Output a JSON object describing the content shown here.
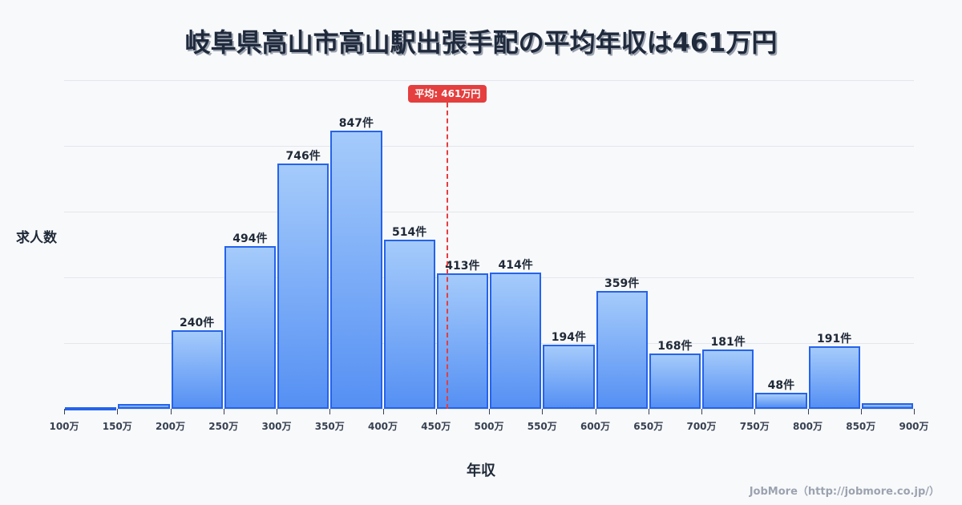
{
  "title": "岐阜県高山市高山駅出張手配の平均年収は461万円",
  "axis": {
    "ylabel": "求人数",
    "xlabel": "年収"
  },
  "mean": {
    "value": 461,
    "label": "平均: 461万円"
  },
  "credit": "JobMore（http://jobmore.co.jp/）",
  "colors": {
    "bar_top": "#a5cbfb",
    "bar_bottom": "#5590f3",
    "bar_border": "#2563eb",
    "mean_line": "#e53e3e",
    "grid": "#e3e6ec",
    "background": "#f8f9fb"
  },
  "chart_data": {
    "type": "bar",
    "title": "岐阜県高山市高山駅出張手配の平均年収は461万円",
    "xlabel": "年収",
    "ylabel": "求人数",
    "ylim": [
      0,
      1000
    ],
    "grid": true,
    "legend": null,
    "x_ticks": [
      "100万",
      "150万",
      "200万",
      "250万",
      "300万",
      "350万",
      "400万",
      "450万",
      "500万",
      "550万",
      "600万",
      "650万",
      "700万",
      "750万",
      "800万",
      "850万",
      "900万"
    ],
    "categories": [
      "100-150万",
      "150-200万",
      "200-250万",
      "250-300万",
      "300-350万",
      "350-400万",
      "400-450万",
      "450-500万",
      "500-550万",
      "550-600万",
      "600-650万",
      "650-700万",
      "700-750万",
      "750-800万",
      "800-850万",
      "850-900万"
    ],
    "values": [
      4,
      14,
      240,
      494,
      746,
      847,
      514,
      413,
      414,
      194,
      359,
      168,
      181,
      48,
      191,
      17
    ],
    "labels": [
      "",
      "",
      "240件",
      "494件",
      "746件",
      "847件",
      "514件",
      "413件",
      "414件",
      "194件",
      "359件",
      "168件",
      "181件",
      "48件",
      "191件",
      ""
    ],
    "annotations": [
      {
        "type": "vline",
        "x": 461,
        "label": "平均: 461万円"
      }
    ]
  }
}
